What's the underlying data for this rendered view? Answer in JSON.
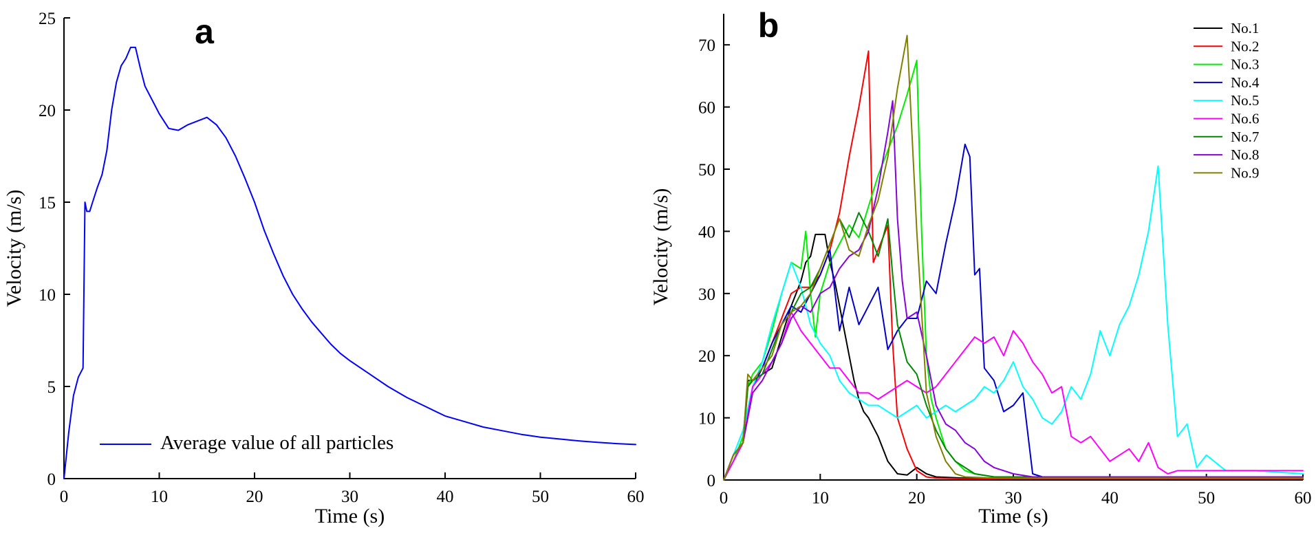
{
  "chart_data": [
    {
      "type": "line",
      "panel_label": "a",
      "xlabel": "Time (s)",
      "ylabel": "Velocity (m/s)",
      "xlim": [
        0,
        60
      ],
      "ylim": [
        0,
        25
      ],
      "xticks": [
        0,
        10,
        20,
        30,
        40,
        50,
        60
      ],
      "yticks": [
        0,
        5,
        10,
        15,
        20,
        25
      ],
      "grid": false,
      "legend": "bottom-left",
      "series": [
        {
          "name": "Average value of all particles",
          "color": "#0000ff",
          "x": [
            0,
            0.5,
            1,
            1.5,
            2,
            2.2,
            2.4,
            2.7,
            3,
            3.5,
            4,
            4.5,
            5,
            5.5,
            6,
            6.5,
            7,
            7.5,
            8,
            8.5,
            9,
            9.5,
            10,
            11,
            12,
            13,
            14,
            15,
            16,
            17,
            18,
            19,
            20,
            21,
            22,
            23,
            24,
            25,
            26,
            27,
            28,
            29,
            30,
            32,
            34,
            36,
            38,
            40,
            42,
            44,
            46,
            48,
            50,
            52,
            54,
            56,
            58,
            60
          ],
          "y": [
            0,
            2.5,
            4.5,
            5.5,
            6,
            15,
            14.5,
            14.5,
            15,
            15.8,
            16.5,
            17.8,
            20,
            21.5,
            22.4,
            22.8,
            23.4,
            23.4,
            22.3,
            21.3,
            20.8,
            20.3,
            19.8,
            19,
            18.9,
            19.2,
            19.4,
            19.6,
            19.2,
            18.5,
            17.5,
            16.3,
            15,
            13.5,
            12.2,
            11,
            10,
            9.2,
            8.5,
            7.9,
            7.3,
            6.8,
            6.4,
            5.7,
            5,
            4.4,
            3.9,
            3.4,
            3.1,
            2.8,
            2.6,
            2.4,
            2.25,
            2.15,
            2.05,
            1.97,
            1.9,
            1.85
          ]
        }
      ]
    },
    {
      "type": "line",
      "panel_label": "b",
      "xlabel": "Time (s)",
      "ylabel": "Velocity (m/s)",
      "xlim": [
        0,
        60
      ],
      "ylim": [
        0,
        75
      ],
      "xticks": [
        0,
        10,
        20,
        30,
        40,
        50,
        60
      ],
      "yticks": [
        0,
        10,
        20,
        30,
        40,
        50,
        60,
        70
      ],
      "grid": false,
      "legend": "top-right",
      "series": [
        {
          "name": "No.1",
          "color": "#000000",
          "x": [
            0,
            1,
            2,
            2.5,
            3,
            4,
            5,
            6,
            7,
            8,
            8.5,
            9,
            9.5,
            10,
            10.5,
            11,
            11.5,
            12,
            12.5,
            13,
            13.5,
            14,
            14.5,
            15,
            16,
            17,
            18,
            19,
            20,
            21,
            22,
            25,
            30,
            40,
            50,
            60
          ],
          "y": [
            0,
            3,
            6,
            16,
            16,
            17,
            18,
            23,
            28,
            32,
            35,
            36,
            39.5,
            39.5,
            39.5,
            35,
            32,
            28,
            24,
            20,
            16,
            13,
            11,
            10,
            7,
            3,
            1,
            0.8,
            2,
            1,
            0.5,
            0.3,
            0.3,
            0.3,
            0.3,
            0.3
          ]
        },
        {
          "name": "No.2",
          "color": "#ff0000",
          "x": [
            0,
            1,
            2,
            2.5,
            3,
            4,
            5,
            6,
            7,
            8,
            9,
            10,
            11,
            12,
            13,
            14,
            15,
            15.5,
            16,
            17,
            17.5,
            18,
            19,
            20,
            21,
            22,
            25,
            30,
            40,
            50,
            60
          ],
          "y": [
            0,
            4,
            6,
            15,
            16,
            18,
            22,
            26,
            30,
            31,
            31,
            33,
            37,
            43,
            52,
            60,
            69,
            35,
            37,
            41,
            22,
            10,
            5,
            1.5,
            0.5,
            0.3,
            0.2,
            0.2,
            0.2,
            0.2,
            0.2
          ]
        },
        {
          "name": "No.3",
          "color": "#00ee00",
          "x": [
            0,
            1,
            2,
            2.5,
            3,
            4,
            5,
            6,
            7,
            8,
            8.5,
            9,
            9.5,
            10,
            11,
            12,
            13,
            14,
            15,
            16,
            17,
            18,
            19,
            20,
            20.5,
            21,
            21.5,
            22,
            23,
            24,
            25,
            26,
            28,
            30,
            40,
            50,
            60
          ],
          "y": [
            0,
            3,
            7,
            15,
            17,
            19,
            24,
            30,
            35,
            34,
            40,
            30,
            23,
            30,
            35,
            38,
            41,
            39,
            44,
            49,
            53,
            57,
            62,
            67.5,
            40,
            20,
            13,
            10,
            5,
            3,
            1.5,
            1,
            0.5,
            0.3,
            0.3,
            0.3,
            0.3
          ]
        },
        {
          "name": "No.4",
          "color": "#0000cc",
          "x": [
            0,
            1,
            2,
            3,
            4,
            5,
            6,
            7,
            8,
            9,
            10,
            11,
            12,
            13,
            14,
            15,
            16,
            17,
            18,
            19,
            20,
            21,
            22,
            23,
            24,
            25,
            25.5,
            26,
            26.5,
            27,
            28,
            29,
            30,
            31,
            32,
            33,
            35,
            40,
            50,
            60
          ],
          "y": [
            0,
            4,
            6,
            15,
            18,
            22,
            25,
            28,
            27,
            30,
            33,
            37,
            24,
            31,
            25,
            28,
            31,
            21,
            24,
            26,
            26,
            32,
            30,
            38,
            45,
            54,
            52,
            33,
            34,
            18,
            16,
            11,
            12,
            14,
            1,
            0.5,
            0.5,
            0.5,
            0.5,
            0.5
          ]
        },
        {
          "name": "No.5",
          "color": "#00ffff",
          "x": [
            0,
            1,
            2,
            3,
            4,
            5,
            6,
            7,
            8,
            9,
            10,
            11,
            12,
            13,
            14,
            15,
            16,
            17,
            18,
            19,
            20,
            21,
            22,
            23,
            24,
            25,
            26,
            27,
            28,
            29,
            30,
            31,
            32,
            33,
            34,
            35,
            36,
            37,
            38,
            39,
            40,
            41,
            42,
            43,
            44,
            45,
            46,
            47,
            48,
            49,
            50,
            52,
            55,
            60
          ],
          "y": [
            0,
            4,
            8,
            15,
            19,
            25,
            30,
            35,
            31,
            25,
            22,
            20,
            16,
            14,
            13,
            12,
            12,
            11,
            10,
            11,
            12,
            10,
            11,
            12,
            11,
            12,
            13,
            15,
            14,
            16,
            19,
            15,
            13,
            10,
            9,
            11,
            15,
            13,
            17,
            24,
            20,
            25,
            28,
            33,
            40,
            50.5,
            25,
            7,
            9,
            2,
            4,
            1.5,
            1.5,
            1
          ]
        },
        {
          "name": "No.6",
          "color": "#ff00ff",
          "x": [
            0,
            1,
            2,
            3,
            4,
            5,
            6,
            7,
            8,
            9,
            10,
            11,
            12,
            13,
            14,
            15,
            16,
            17,
            18,
            19,
            20,
            21,
            22,
            23,
            24,
            25,
            26,
            27,
            28,
            29,
            30,
            31,
            32,
            33,
            34,
            35,
            36,
            37,
            38,
            39,
            40,
            41,
            42,
            43,
            44,
            45,
            46,
            47,
            48,
            50,
            52,
            54,
            56,
            58,
            60
          ],
          "y": [
            0,
            3,
            6,
            15,
            17,
            19,
            22,
            27,
            24,
            22,
            20,
            18,
            18,
            16,
            14,
            14,
            13,
            14,
            15,
            16,
            15,
            14,
            15,
            17,
            19,
            21,
            23,
            22,
            23,
            20,
            24,
            22,
            19,
            17,
            14,
            15,
            7,
            6,
            7,
            5,
            3,
            4,
            5,
            3,
            6,
            2,
            1,
            1.5,
            1.5,
            1.5,
            1.5,
            1.5,
            1.5,
            1.5,
            1.5
          ]
        },
        {
          "name": "No.7",
          "color": "#008800",
          "x": [
            0,
            1,
            2,
            2.5,
            3,
            4,
            5,
            6,
            7,
            8,
            9,
            10,
            11,
            12,
            13,
            14,
            15,
            16,
            17,
            17.5,
            18,
            19,
            20,
            21,
            22,
            23,
            24,
            25,
            26,
            28,
            30,
            40,
            50,
            60
          ],
          "y": [
            0,
            4,
            6,
            15,
            16,
            17,
            21,
            25,
            27,
            30,
            31,
            34,
            38,
            42,
            39,
            43,
            40,
            36,
            42,
            33,
            25,
            19,
            17,
            12,
            8,
            5,
            3,
            2,
            1,
            0.5,
            0.5,
            0.5,
            0.5,
            0.5
          ]
        },
        {
          "name": "No.8",
          "color": "#8800dd",
          "x": [
            0,
            1,
            2,
            3,
            4,
            5,
            6,
            7,
            8,
            9,
            10,
            11,
            12,
            13,
            14,
            15,
            16,
            17,
            17.5,
            18,
            18.5,
            19,
            20,
            21,
            22,
            23,
            24,
            25,
            26,
            27,
            28,
            29,
            30,
            32,
            35,
            40,
            50,
            60
          ],
          "y": [
            0,
            4,
            6,
            14,
            16,
            19,
            22,
            26,
            28,
            27,
            30,
            31,
            34,
            36,
            37,
            40,
            47,
            56,
            61,
            42,
            32,
            26,
            27,
            20,
            12,
            9,
            8,
            6,
            5,
            3,
            2,
            1.5,
            1,
            0.5,
            0.5,
            0.5,
            0.5,
            0.5
          ]
        },
        {
          "name": "No.9",
          "color": "#808000",
          "x": [
            0,
            1,
            2,
            2.5,
            3,
            4,
            5,
            6,
            7,
            8,
            9,
            10,
            11,
            12,
            13,
            14,
            15,
            16,
            17,
            18,
            19,
            20,
            21,
            22,
            23,
            24,
            25,
            28,
            30,
            40,
            50,
            60
          ],
          "y": [
            0,
            4,
            6,
            17,
            16,
            18,
            20,
            25,
            27,
            28,
            30,
            34,
            38,
            42,
            37,
            36,
            41,
            45,
            52,
            63,
            71.5,
            40,
            14,
            7,
            3,
            1,
            0.5,
            0.3,
            0.3,
            0.3,
            0.3,
            0.3
          ]
        }
      ]
    }
  ]
}
